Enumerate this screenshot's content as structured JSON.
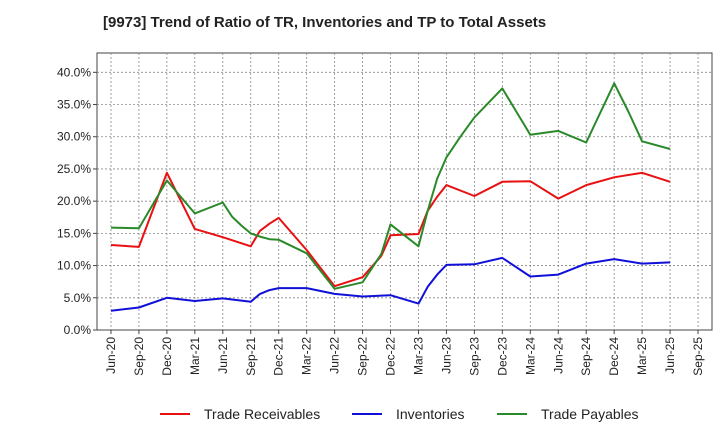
{
  "chart_data": {
    "type": "line",
    "title": "[9973]  Trend of Ratio of TR, Inventories and TP to Total Assets",
    "x_ticks": [
      "Jun-20",
      "Sep-20",
      "Dec-20",
      "Mar-21",
      "Jun-21",
      "Sep-21",
      "Dec-21",
      "Mar-22",
      "Jun-22",
      "Sep-22",
      "Dec-22",
      "Mar-23",
      "Jun-23",
      "Sep-23",
      "Dec-23",
      "Mar-24",
      "Jun-24",
      "Sep-24",
      "Dec-24",
      "Mar-25",
      "Jun-25",
      "Sep-25"
    ],
    "y_ticks": [
      "0.0%",
      "5.0%",
      "10.0%",
      "15.0%",
      "20.0%",
      "25.0%",
      "30.0%",
      "35.0%",
      "40.0%"
    ],
    "ylim": [
      0,
      43
    ],
    "grid": true,
    "legend_position": "bottom",
    "series": [
      {
        "name": "Trade Receivables",
        "color": "#e81010",
        "points": [
          [
            0,
            13.2
          ],
          [
            1,
            12.9
          ],
          [
            2,
            24.4
          ],
          [
            3,
            15.7
          ],
          [
            4,
            14.4
          ],
          [
            5,
            13.0
          ],
          [
            5.33,
            15.4
          ],
          [
            5.67,
            16.5
          ],
          [
            6,
            17.4
          ],
          [
            7,
            12.4
          ],
          [
            8,
            6.8
          ],
          [
            9,
            8.2
          ],
          [
            9.67,
            11.5
          ],
          [
            10,
            14.7
          ],
          [
            11,
            14.9
          ],
          [
            11.33,
            18.5
          ],
          [
            11.67,
            20.7
          ],
          [
            12,
            22.5
          ],
          [
            13,
            20.8
          ],
          [
            14,
            23.0
          ],
          [
            15,
            23.1
          ],
          [
            16,
            20.4
          ],
          [
            17,
            22.5
          ],
          [
            18,
            23.7
          ],
          [
            19,
            24.4
          ],
          [
            20,
            23.0
          ]
        ]
      },
      {
        "name": "Inventories",
        "color": "#1010d8",
        "points": [
          [
            0,
            3.0
          ],
          [
            1,
            3.5
          ],
          [
            2,
            5.0
          ],
          [
            3,
            4.5
          ],
          [
            4,
            4.9
          ],
          [
            5,
            4.4
          ],
          [
            5.33,
            5.6
          ],
          [
            5.67,
            6.2
          ],
          [
            6,
            6.5
          ],
          [
            7,
            6.5
          ],
          [
            8,
            5.6
          ],
          [
            9,
            5.2
          ],
          [
            10,
            5.4
          ],
          [
            11,
            4.1
          ],
          [
            11.33,
            6.7
          ],
          [
            11.67,
            8.6
          ],
          [
            12,
            10.1
          ],
          [
            13,
            10.2
          ],
          [
            14,
            11.2
          ],
          [
            15,
            8.3
          ],
          [
            16,
            8.6
          ],
          [
            17,
            10.3
          ],
          [
            18,
            11.0
          ],
          [
            19,
            10.3
          ],
          [
            20,
            10.5
          ]
        ]
      },
      {
        "name": "Trade Payables",
        "color": "#2a8a2a",
        "points": [
          [
            0,
            15.9
          ],
          [
            1,
            15.8
          ],
          [
            2,
            23.2
          ],
          [
            3,
            18.1
          ],
          [
            4,
            19.8
          ],
          [
            4.33,
            17.6
          ],
          [
            4.67,
            16.2
          ],
          [
            5,
            15.0
          ],
          [
            5.33,
            14.5
          ],
          [
            5.67,
            14.1
          ],
          [
            6,
            14.0
          ],
          [
            7,
            11.9
          ],
          [
            8,
            6.4
          ],
          [
            9,
            7.4
          ],
          [
            9.67,
            11.8
          ],
          [
            10,
            16.4
          ],
          [
            11,
            13.0
          ],
          [
            11.33,
            18.5
          ],
          [
            11.67,
            23.5
          ],
          [
            12,
            26.8
          ],
          [
            12.5,
            30.0
          ],
          [
            13,
            33.0
          ],
          [
            14,
            37.5
          ],
          [
            15,
            30.3
          ],
          [
            16,
            30.9
          ],
          [
            17,
            29.1
          ],
          [
            18,
            38.3
          ],
          [
            18.5,
            34.0
          ],
          [
            19,
            29.3
          ],
          [
            20,
            28.1
          ]
        ]
      }
    ]
  }
}
